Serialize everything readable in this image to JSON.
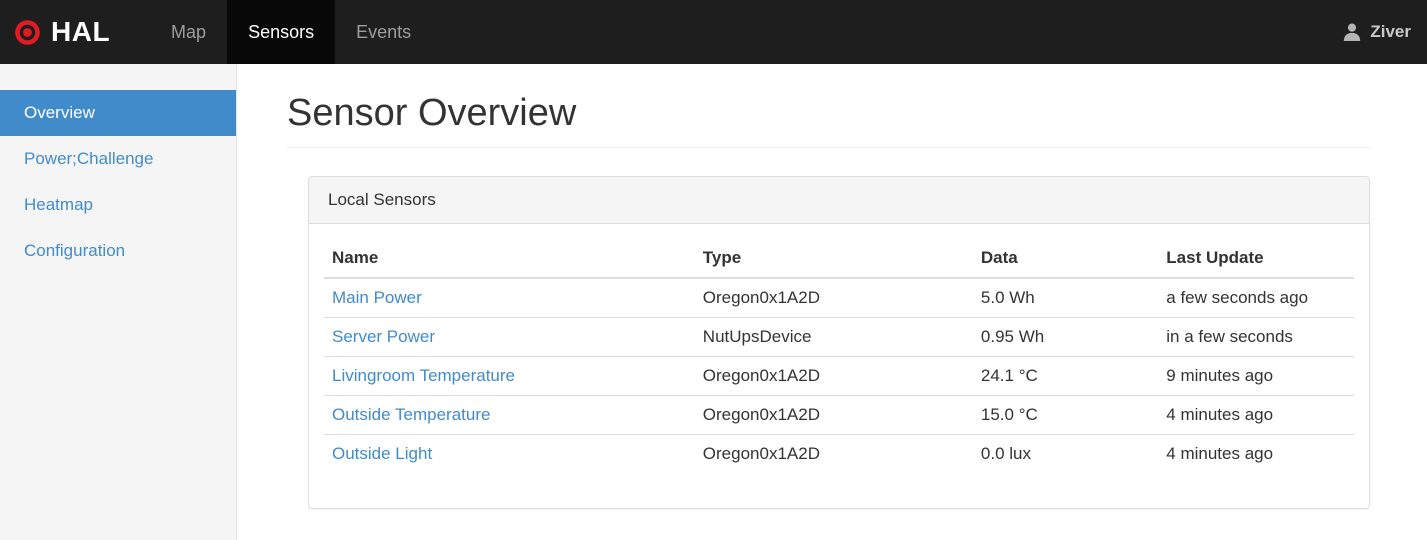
{
  "navbar": {
    "brand": "HAL",
    "items": [
      {
        "label": "Map",
        "active": false
      },
      {
        "label": "Sensors",
        "active": true
      },
      {
        "label": "Events",
        "active": false
      }
    ],
    "user": "Ziver"
  },
  "sidebar": {
    "items": [
      {
        "label": "Overview",
        "active": true
      },
      {
        "label": "Power;Challenge",
        "active": false
      },
      {
        "label": "Heatmap",
        "active": false
      },
      {
        "label": "Configuration",
        "active": false
      }
    ]
  },
  "main": {
    "title": "Sensor Overview",
    "panel": {
      "title": "Local Sensors",
      "table": {
        "headers": [
          "Name",
          "Type",
          "Data",
          "Last Update"
        ],
        "rows": [
          {
            "name": "Main Power",
            "type": "Oregon0x1A2D",
            "data": "5.0 Wh",
            "last_update": "a few seconds ago"
          },
          {
            "name": "Server Power",
            "type": "NutUpsDevice",
            "data": "0.95 Wh",
            "last_update": "in a few seconds"
          },
          {
            "name": "Livingroom Temperature",
            "type": "Oregon0x1A2D",
            "data": "24.1 °C",
            "last_update": "9 minutes ago"
          },
          {
            "name": "Outside Temperature",
            "type": "Oregon0x1A2D",
            "data": "15.0 °C",
            "last_update": "4 minutes ago"
          },
          {
            "name": "Outside Light",
            "type": "Oregon0x1A2D",
            "data": "0.0 lux",
            "last_update": "4 minutes ago"
          }
        ]
      }
    }
  },
  "icons": {
    "brand_logo": "bullseye-icon",
    "user": "user-icon"
  },
  "colors": {
    "accent": "#428bca",
    "brand_red": "#e01b24",
    "navbar_bg": "#1e1e1e",
    "navbar_active_bg": "#080808",
    "sidebar_bg": "#f5f5f5"
  }
}
